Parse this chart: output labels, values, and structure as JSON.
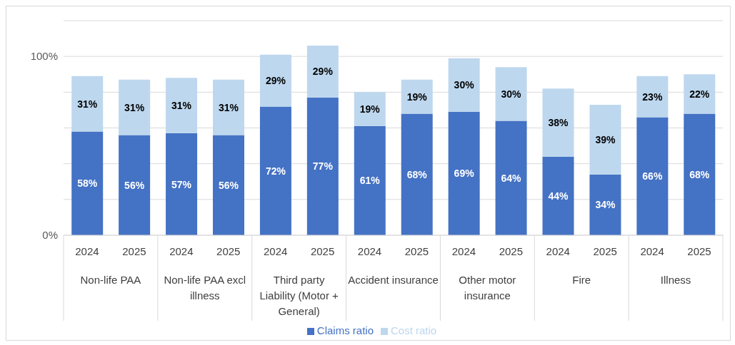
{
  "chart_data": {
    "type": "bar",
    "stacked": true,
    "categories": [
      "2024",
      "2025",
      "2024",
      "2025",
      "2024",
      "2025",
      "2024",
      "2025",
      "2024",
      "2025",
      "2024",
      "2025",
      "2024",
      "2025"
    ],
    "annotations": [
      "Non-life PAA",
      "Non-life PAA excl illness",
      "Third party Liability (Motor + General)",
      "Accident insurance",
      "Other motor insurance",
      "Fire",
      "Illness"
    ],
    "series": [
      {
        "name": "Claims ratio",
        "color": "#4472c4",
        "values": [
          58,
          56,
          57,
          56,
          72,
          77,
          61,
          68,
          69,
          64,
          44,
          34,
          66,
          68
        ],
        "value_labels": [
          "58%",
          "56%",
          "57%",
          "56%",
          "72%",
          "77%",
          "61%",
          "68%",
          "69%",
          "64%",
          "44%",
          "34%",
          "66%",
          "68%"
        ]
      },
      {
        "name": "Cost ratio",
        "color": "#bdd7ee",
        "values": [
          31,
          31,
          31,
          31,
          29,
          29,
          19,
          19,
          30,
          30,
          38,
          39,
          23,
          22
        ],
        "value_labels": [
          "31%",
          "31%",
          "31%",
          "31%",
          "29%",
          "29%",
          "19%",
          "19%",
          "30%",
          "30%",
          "38%",
          "39%",
          "23%",
          "22%"
        ]
      }
    ],
    "ylim": [
      0,
      120
    ],
    "yticks": [
      {
        "value": 0,
        "label": "0%"
      },
      {
        "value": 20,
        "label": null
      },
      {
        "value": 40,
        "label": null
      },
      {
        "value": 60,
        "label": null
      },
      {
        "value": 80,
        "label": null
      },
      {
        "value": 100,
        "label": "100%"
      },
      {
        "value": 120,
        "label": null
      }
    ],
    "grid": "y",
    "legend": "bottom"
  }
}
